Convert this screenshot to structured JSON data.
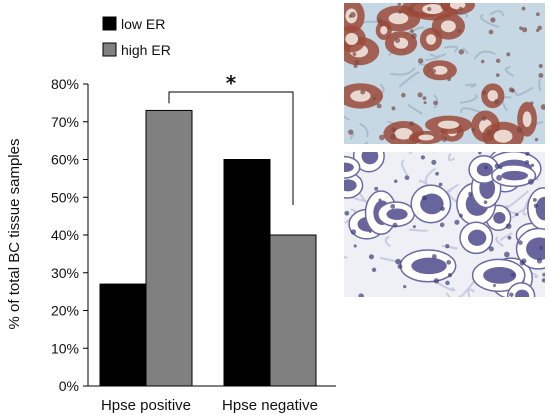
{
  "chart_data": {
    "type": "bar",
    "categories": [
      "Hpse positive",
      "Hpse negative"
    ],
    "series": [
      {
        "name": "low ER",
        "values": [
          27,
          60
        ],
        "color": "#000000"
      },
      {
        "name": "high ER",
        "values": [
          73,
          40
        ],
        "color": "#808080"
      }
    ],
    "ylabel": "% of total BC tissue samples",
    "ylim": [
      0,
      80
    ],
    "yticks": [
      "0%",
      "10%",
      "20%",
      "30%",
      "40%",
      "50%",
      "60%",
      "70%",
      "80%"
    ],
    "grid": false,
    "legend_position": "top-left",
    "annotation": "*"
  },
  "images": [
    {
      "name": "micrograph-high-er",
      "stain": "brown",
      "background": "#c5d8e4",
      "accent": "#9b4a3a"
    },
    {
      "name": "micrograph-low-er",
      "stain": "purple",
      "background": "#eef0f6",
      "accent": "#4d4a8c"
    }
  ]
}
